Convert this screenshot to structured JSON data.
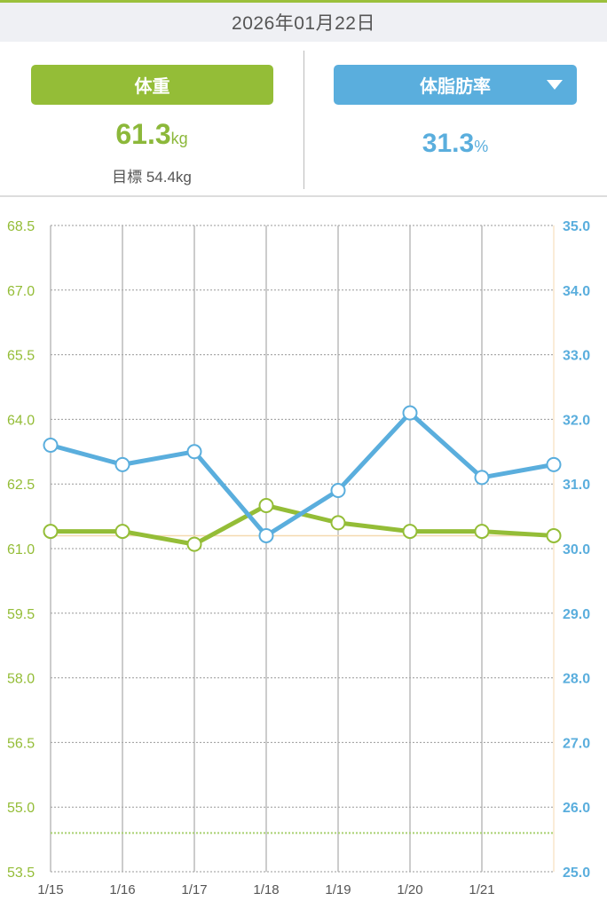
{
  "header": {
    "date": "2026年01月22日"
  },
  "summary": {
    "weight": {
      "label": "体重",
      "value": "61.3",
      "unit": "kg",
      "goal_label": "目標 54.4kg"
    },
    "fat": {
      "label": "体脂肪率",
      "value": "31.3",
      "unit": "%",
      "dropdown_icon": "caret-down-icon"
    }
  },
  "colors": {
    "weight": "#94bd37",
    "fat": "#5aaedd",
    "goal": "#a8d070",
    "today": "#f5d9b0"
  },
  "chart_data": {
    "type": "line",
    "x": [
      "1/15",
      "1/16",
      "1/17",
      "1/18",
      "1/19",
      "1/20",
      "1/21",
      "1/22"
    ],
    "x_tick_labels": [
      "1/15",
      "1/16",
      "1/17",
      "1/18",
      "1/19",
      "1/20",
      "1/21"
    ],
    "series": [
      {
        "name": "体重",
        "axis": "left",
        "values": [
          61.4,
          61.4,
          61.1,
          62.0,
          61.6,
          61.4,
          61.4,
          61.3
        ]
      },
      {
        "name": "体脂肪率",
        "axis": "right",
        "values": [
          31.6,
          31.3,
          31.5,
          30.2,
          30.9,
          32.1,
          31.1,
          31.3
        ]
      }
    ],
    "left_axis": {
      "ylim": [
        53.5,
        68.5
      ],
      "ticks": [
        "53.5",
        "55.0",
        "56.5",
        "58.0",
        "59.5",
        "61.0",
        "62.5",
        "64.0",
        "65.5",
        "67.0",
        "68.5"
      ]
    },
    "right_axis": {
      "ylim": [
        25.0,
        35.0
      ],
      "ticks": [
        "25.0",
        "26.0",
        "27.0",
        "28.0",
        "29.0",
        "30.0",
        "31.0",
        "32.0",
        "33.0",
        "34.0",
        "35.0"
      ]
    },
    "goal_weight": 54.4,
    "current_weight_line": 61.3,
    "grid": true
  }
}
